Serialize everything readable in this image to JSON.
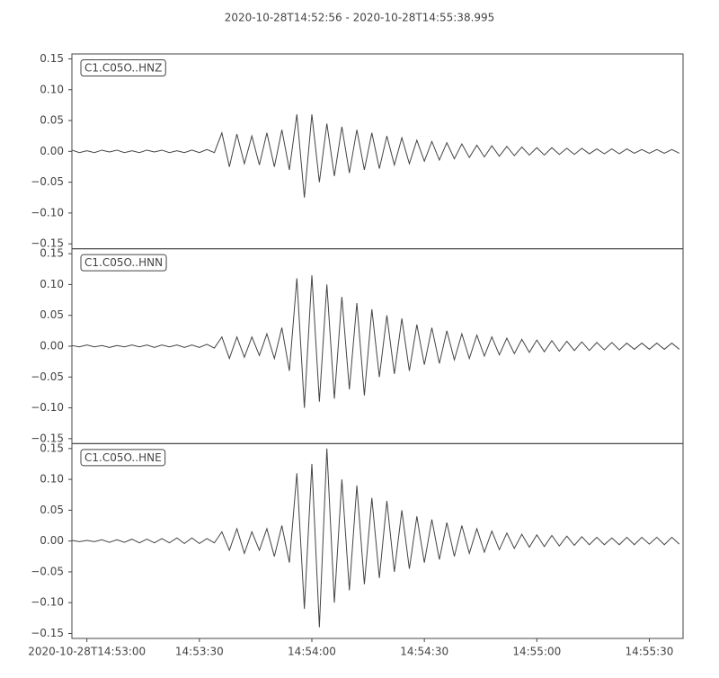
{
  "chart_data": {
    "type": "line",
    "layout": "stacked",
    "title": "2020-10-28T14:52:56  -  2020-10-28T14:55:38.995",
    "xlim": [
      "2020-10-28T14:52:56",
      "2020-10-28T14:55:38.995"
    ],
    "xticks": [
      "2020-10-28T14:53:00",
      "14:53:30",
      "14:54:00",
      "14:54:30",
      "14:55:00",
      "14:55:30"
    ],
    "ylim": [
      -0.158,
      0.158
    ],
    "yticks": [
      {
        "value": -0.15,
        "label": "−0.15"
      },
      {
        "value": -0.1,
        "label": "−0.10"
      },
      {
        "value": -0.05,
        "label": "−0.05"
      },
      {
        "value": 0,
        "label": "0.00"
      },
      {
        "value": 0.05,
        "label": "0.05"
      },
      {
        "value": 0.1,
        "label": "0.10"
      },
      {
        "value": 0.15,
        "label": "0.15"
      }
    ],
    "x": [
      "14:52:56",
      "14:52:58",
      "14:53:00",
      "14:53:02",
      "14:53:04",
      "14:53:06",
      "14:53:08",
      "14:53:10",
      "14:53:12",
      "14:53:14",
      "14:53:16",
      "14:53:18",
      "14:53:20",
      "14:53:22",
      "14:53:24",
      "14:53:26",
      "14:53:28",
      "14:53:30",
      "14:53:32",
      "14:53:34",
      "14:53:36",
      "14:53:38",
      "14:53:40",
      "14:53:42",
      "14:53:44",
      "14:53:46",
      "14:53:48",
      "14:53:50",
      "14:53:52",
      "14:53:54",
      "14:53:56",
      "14:53:58",
      "14:54:00",
      "14:54:02",
      "14:54:04",
      "14:54:06",
      "14:54:08",
      "14:54:10",
      "14:54:12",
      "14:54:14",
      "14:54:16",
      "14:54:18",
      "14:54:20",
      "14:54:22",
      "14:54:24",
      "14:54:26",
      "14:54:28",
      "14:54:30",
      "14:54:32",
      "14:54:34",
      "14:54:36",
      "14:54:38",
      "14:54:40",
      "14:54:42",
      "14:54:44",
      "14:54:46",
      "14:54:48",
      "14:54:50",
      "14:54:52",
      "14:54:54",
      "14:54:56",
      "14:54:58",
      "14:55:00",
      "14:55:02",
      "14:55:04",
      "14:55:06",
      "14:55:08",
      "14:55:10",
      "14:55:12",
      "14:55:14",
      "14:55:16",
      "14:55:18",
      "14:55:20",
      "14:55:22",
      "14:55:24",
      "14:55:26",
      "14:55:28",
      "14:55:30",
      "14:55:32",
      "14:55:34",
      "14:55:36",
      "14:55:38"
    ],
    "series": [
      {
        "name": "C1.C05O..HNZ",
        "color": "#444444",
        "values": [
          0.002,
          -0.002,
          0.001,
          -0.002,
          0.002,
          -0.001,
          0.002,
          -0.002,
          0.001,
          -0.002,
          0.002,
          -0.001,
          0.002,
          -0.002,
          0.001,
          -0.002,
          0.002,
          -0.002,
          0.003,
          -0.002,
          0.03,
          -0.025,
          0.028,
          -0.02,
          0.025,
          -0.022,
          0.03,
          -0.025,
          0.035,
          -0.03,
          0.06,
          -0.075,
          0.06,
          -0.05,
          0.045,
          -0.04,
          0.04,
          -0.035,
          0.035,
          -0.03,
          0.03,
          -0.028,
          0.025,
          -0.022,
          0.022,
          -0.02,
          0.018,
          -0.016,
          0.016,
          -0.014,
          0.014,
          -0.012,
          0.012,
          -0.01,
          0.01,
          -0.009,
          0.009,
          -0.008,
          0.008,
          -0.007,
          0.007,
          -0.006,
          0.006,
          -0.006,
          0.006,
          -0.005,
          0.005,
          -0.005,
          0.005,
          -0.004,
          0.004,
          -0.004,
          0.004,
          -0.004,
          0.004,
          -0.003,
          0.003,
          -0.003,
          0.003,
          -0.003,
          0.003,
          -0.003
        ]
      },
      {
        "name": "C1.C05O..HNN",
        "color": "#444444",
        "values": [
          0.001,
          -0.001,
          0.002,
          -0.001,
          0.001,
          -0.002,
          0.001,
          -0.001,
          0.002,
          -0.001,
          0.002,
          -0.002,
          0.002,
          -0.001,
          0.002,
          -0.002,
          0.002,
          -0.002,
          0.003,
          -0.003,
          0.015,
          -0.02,
          0.015,
          -0.018,
          0.015,
          -0.015,
          0.02,
          -0.02,
          0.03,
          -0.04,
          0.11,
          -0.1,
          0.115,
          -0.09,
          0.1,
          -0.085,
          0.08,
          -0.07,
          0.07,
          -0.08,
          0.06,
          -0.05,
          0.05,
          -0.045,
          0.045,
          -0.04,
          0.035,
          -0.03,
          0.03,
          -0.028,
          0.025,
          -0.022,
          0.02,
          -0.02,
          0.018,
          -0.016,
          0.015,
          -0.014,
          0.013,
          -0.012,
          0.011,
          -0.01,
          0.01,
          -0.009,
          0.009,
          -0.008,
          0.008,
          -0.007,
          0.007,
          -0.007,
          0.006,
          -0.006,
          0.006,
          -0.006,
          0.005,
          -0.005,
          0.005,
          -0.005,
          0.005,
          -0.005,
          0.005,
          -0.005
        ]
      },
      {
        "name": "C1.C05O..HNE",
        "color": "#444444",
        "values": [
          0.001,
          -0.001,
          0.001,
          -0.001,
          0.002,
          -0.002,
          0.002,
          -0.002,
          0.003,
          -0.003,
          0.003,
          -0.003,
          0.004,
          -0.003,
          0.005,
          -0.004,
          0.005,
          -0.004,
          0.004,
          -0.003,
          0.015,
          -0.015,
          0.02,
          -0.02,
          0.015,
          -0.015,
          0.02,
          -0.025,
          0.025,
          -0.035,
          0.11,
          -0.11,
          0.125,
          -0.14,
          0.15,
          -0.1,
          0.1,
          -0.08,
          0.09,
          -0.07,
          0.07,
          -0.06,
          0.065,
          -0.05,
          0.05,
          -0.045,
          0.04,
          -0.035,
          0.035,
          -0.03,
          0.03,
          -0.025,
          0.025,
          -0.02,
          0.02,
          -0.018,
          0.016,
          -0.014,
          0.013,
          -0.012,
          0.011,
          -0.01,
          0.01,
          -0.009,
          0.009,
          -0.008,
          0.008,
          -0.007,
          0.007,
          -0.006,
          0.006,
          -0.006,
          0.005,
          -0.006,
          0.006,
          -0.006,
          0.006,
          -0.005,
          0.006,
          -0.006,
          0.006,
          -0.005
        ]
      }
    ]
  }
}
